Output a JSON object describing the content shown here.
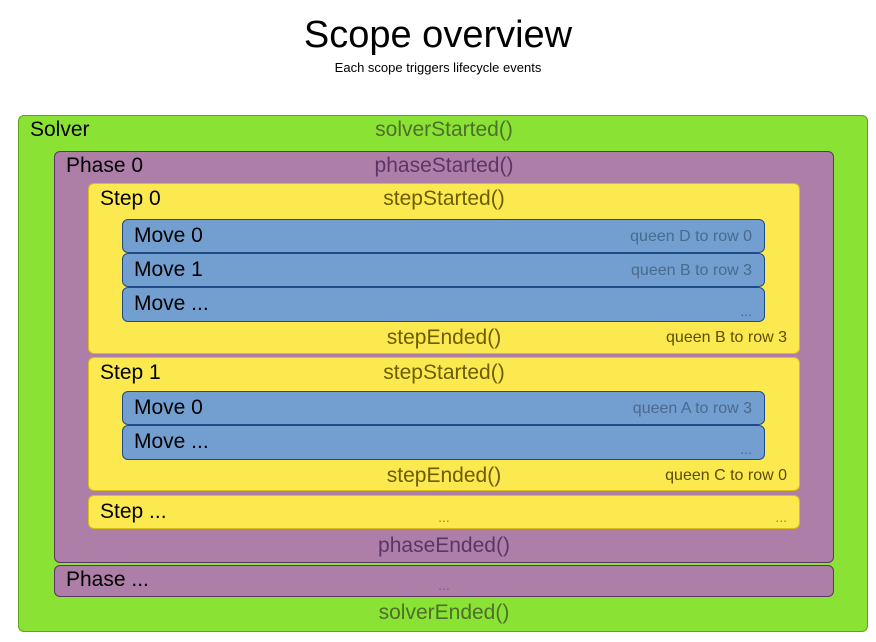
{
  "header": {
    "title": "Scope overview",
    "subtitle": "Each scope triggers lifecycle events"
  },
  "colors": {
    "solver": "#8ae234",
    "phase": "#ad7fa8",
    "step": "#fce94f",
    "move": "#729fcf"
  },
  "solver": {
    "label": "Solver",
    "started": "solverStarted()",
    "ended": "solverEnded()"
  },
  "phase0": {
    "label": "Phase 0",
    "started": "phaseStarted()",
    "ended": "phaseEnded()"
  },
  "step0": {
    "label": "Step 0",
    "started": "stepStarted()",
    "ended": "stepEnded()",
    "ended_note": "queen B to row 3",
    "moves": [
      {
        "label": "Move 0",
        "note": "queen D to row 0"
      },
      {
        "label": "Move 1",
        "note": "queen B to row 3"
      },
      {
        "label": "Move ...",
        "note": "..."
      }
    ]
  },
  "step1": {
    "label": "Step 1",
    "started": "stepStarted()",
    "ended": "stepEnded()",
    "ended_note": "queen C to row 0",
    "moves": [
      {
        "label": "Move 0",
        "note": "queen A to row 3"
      },
      {
        "label": "Move ...",
        "note": "..."
      }
    ]
  },
  "step_more": {
    "label": "Step ...",
    "middle": "...",
    "right": "..."
  },
  "phase_more": {
    "label": "Phase ...",
    "middle": "..."
  }
}
